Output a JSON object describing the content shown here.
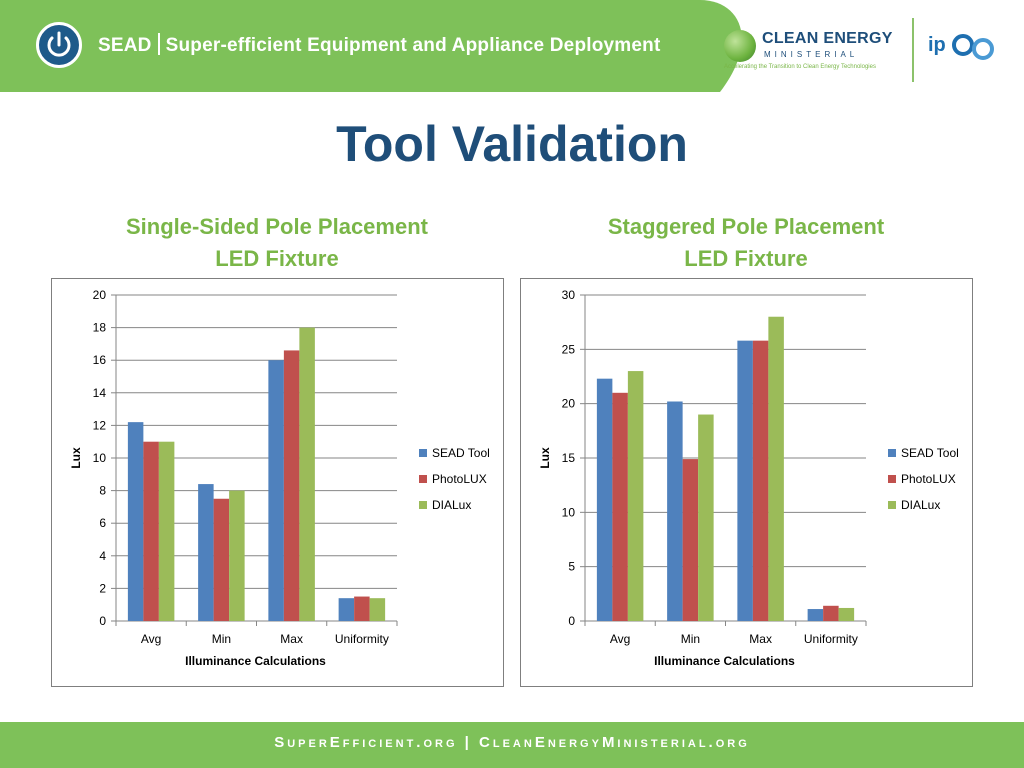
{
  "header": {
    "brand": "SEAD",
    "tagline": "Super-efficient Equipment and Appliance Deployment",
    "partner_name": "CLEAN ENERGY",
    "partner_sub": "MINISTERIAL",
    "partner_tagline": "Accelerating the Transition to Clean Energy Technologies",
    "partner2": "ip"
  },
  "page": {
    "title": "Tool Validation"
  },
  "charts": [
    {
      "title_line1": "Single-Sided Pole Placement",
      "title_line2": "LED Fixture"
    },
    {
      "title_line1": "Staggered Pole Placement",
      "title_line2": "LED Fixture"
    }
  ],
  "chart_data": [
    {
      "type": "bar",
      "title": "Single-Sided Pole Placement LED Fixture",
      "categories": [
        "Avg",
        "Min",
        "Max",
        "Uniformity"
      ],
      "series": [
        {
          "name": "SEAD Tool",
          "values": [
            12.2,
            8.4,
            16.0,
            1.4
          ]
        },
        {
          "name": "PhotoLUX",
          "values": [
            11.0,
            7.5,
            16.6,
            1.5
          ]
        },
        {
          "name": "DIALux",
          "values": [
            11.0,
            8.0,
            18.0,
            1.4
          ]
        }
      ],
      "xlabel": "Illuminance Calculations",
      "ylabel": "Lux",
      "ylim": [
        0,
        20
      ],
      "yticks": [
        0,
        2,
        4,
        6,
        8,
        10,
        12,
        14,
        16,
        18,
        20
      ],
      "grid": true,
      "legend": "right"
    },
    {
      "type": "bar",
      "title": "Staggered Pole Placement LED Fixture",
      "categories": [
        "Avg",
        "Min",
        "Max",
        "Uniformity"
      ],
      "series": [
        {
          "name": "SEAD Tool",
          "values": [
            22.3,
            20.2,
            25.8,
            1.1
          ]
        },
        {
          "name": "PhotoLUX",
          "values": [
            21.0,
            14.9,
            25.8,
            1.4
          ]
        },
        {
          "name": "DIALux",
          "values": [
            23.0,
            19.0,
            28.0,
            1.2
          ]
        }
      ],
      "xlabel": "Illuminance Calculations",
      "ylabel": "Lux",
      "ylim": [
        0,
        30
      ],
      "yticks": [
        0,
        5,
        10,
        15,
        20,
        25,
        30
      ],
      "grid": true,
      "legend": "right"
    }
  ],
  "colors": {
    "series": [
      "#4f81bd",
      "#c0504d",
      "#9bbb59"
    ],
    "accent": "#7ab648",
    "title": "#1f4e79"
  },
  "footer": {
    "text": "SuperEfficient.org  |  CleanEnergyMinisterial.org"
  }
}
